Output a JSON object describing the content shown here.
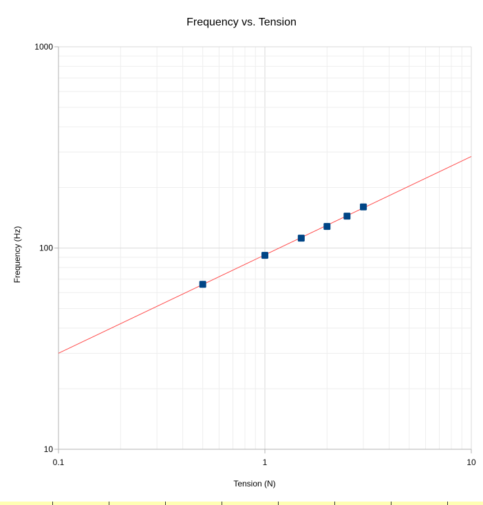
{
  "chart_data": {
    "type": "scatter",
    "title": "Frequency vs. Tension",
    "xlabel": "Tension (N)",
    "ylabel": "Frequency (Hz)",
    "x_scale": "log",
    "y_scale": "log",
    "xlim": [
      0.1,
      10
    ],
    "ylim": [
      10,
      1000
    ],
    "x_ticks": [
      "0.1",
      "1",
      "10"
    ],
    "y_ticks": [
      "10",
      "100",
      "1000"
    ],
    "grid": true,
    "legend": "none",
    "series": [
      {
        "color": "#004586",
        "marker": "square",
        "points": [
          {
            "x": 0.5,
            "y": 66
          },
          {
            "x": 1.0,
            "y": 92
          },
          {
            "x": 1.5,
            "y": 112
          },
          {
            "x": 2.0,
            "y": 128
          },
          {
            "x": 2.5,
            "y": 144
          },
          {
            "x": 3.0,
            "y": 160
          }
        ]
      }
    ],
    "trendline": {
      "color": "#ff4d4d",
      "points": [
        {
          "x": 0.1,
          "y": 30
        },
        {
          "x": 10,
          "y": 285
        }
      ]
    }
  }
}
